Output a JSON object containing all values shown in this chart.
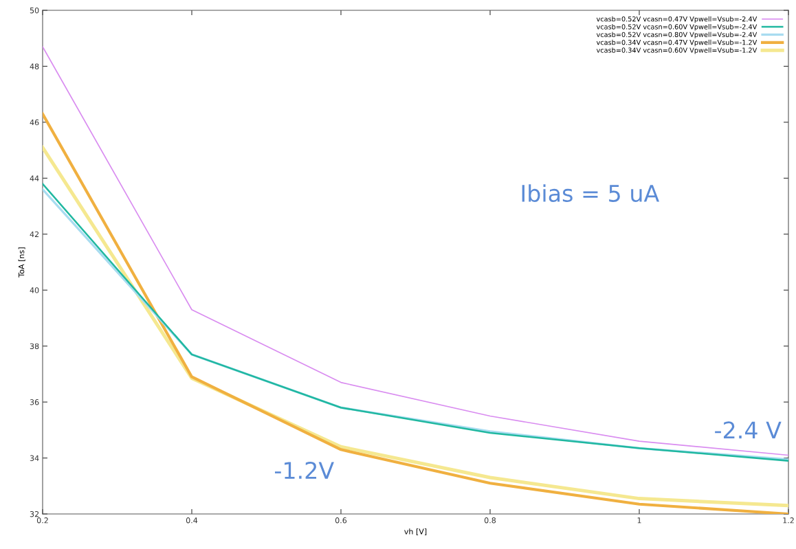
{
  "chart_data": {
    "type": "line",
    "xlabel": "vh [V]",
    "ylabel": "ToA [ns]",
    "x": [
      0.2,
      0.4,
      0.6,
      0.8,
      1.0,
      1.2
    ],
    "series": [
      {
        "name": "vcasb=0.52V vcasn=0.47V Vpwell=Vsub=-2.4V",
        "color": "#d98cf0",
        "values": [
          48.7,
          39.3,
          36.7,
          35.5,
          34.6,
          34.1
        ]
      },
      {
        "name": "vcasb=0.52V vcasn=0.60V Vpwell=Vsub=-2.4V",
        "color": "#20b8a0",
        "values": [
          43.8,
          37.7,
          35.8,
          34.9,
          34.35,
          33.9
        ]
      },
      {
        "name": "vcasb=0.52V vcasn=0.80V Vpwell=Vsub=-2.4V",
        "color": "#a8dcf0",
        "values": [
          43.6,
          37.7,
          35.8,
          34.95,
          34.35,
          33.95
        ]
      },
      {
        "name": "vcasb=0.34V vcasn=0.47V Vpwell=Vsub=-1.2V",
        "color": "#f0b040",
        "values": [
          46.3,
          36.9,
          34.3,
          33.1,
          32.35,
          32.0
        ]
      },
      {
        "name": "vcasb=0.34V vcasn=0.60V Vpwell=Vsub=-1.2V",
        "color": "#f5e890",
        "values": [
          45.1,
          36.85,
          34.4,
          33.3,
          32.55,
          32.3
        ]
      }
    ],
    "xlim": [
      0.2,
      1.2
    ],
    "ylim": [
      32,
      50
    ],
    "xticks": [
      0.2,
      0.4,
      0.6,
      0.8,
      {
        "value": 1.0,
        "label": "1"
      },
      1.2
    ],
    "yticks": [
      32,
      34,
      36,
      38,
      40,
      42,
      44,
      46,
      48,
      50
    ],
    "annotations": [
      "Ibias = 5 uA",
      "-2.4 V",
      "-1.2V"
    ],
    "legend": "top right",
    "grid": false,
    "marker": "none",
    "line_style": "solid"
  }
}
